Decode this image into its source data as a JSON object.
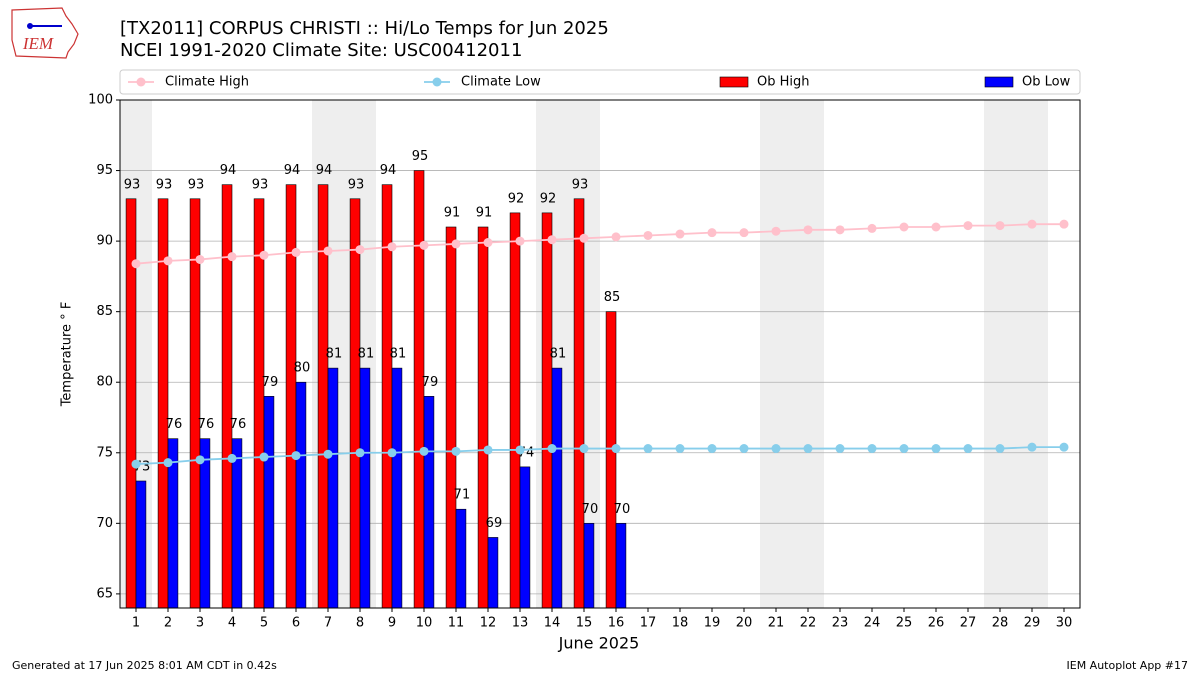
{
  "chart_data": {
    "type": "bar-line",
    "title": "[TX2011] CORPUS CHRISTI :: Hi/Lo Temps for Jun 2025",
    "subtitle": "NCEI 1991-2020 Climate Site: USC00412011",
    "x_label": "June 2025",
    "y_label": "Temperature ° F",
    "logo": "IEM",
    "footer_left": "Generated at 17 Jun 2025 8:01 AM CDT in 0.42s",
    "footer_right": "IEM Autoplot App #17",
    "x": [
      1,
      2,
      3,
      4,
      5,
      6,
      7,
      8,
      9,
      10,
      11,
      12,
      13,
      14,
      15,
      16,
      17,
      18,
      19,
      20,
      21,
      22,
      23,
      24,
      25,
      26,
      27,
      28,
      29,
      30
    ],
    "xlim": [
      0.5,
      30.5
    ],
    "ylim": [
      64,
      100
    ],
    "yticks": [
      65,
      70,
      75,
      80,
      85,
      90,
      95,
      100
    ],
    "grid": true,
    "shade_weekends": true,
    "legend": "top",
    "series": [
      {
        "name": "Climate High",
        "kind": "line",
        "color": "#ffc0cb",
        "values": [
          88.4,
          88.6,
          88.7,
          88.9,
          89.0,
          89.2,
          89.3,
          89.4,
          89.6,
          89.7,
          89.8,
          89.9,
          90.0,
          90.1,
          90.2,
          90.3,
          90.4,
          90.5,
          90.6,
          90.6,
          90.7,
          90.8,
          90.8,
          90.9,
          91.0,
          91.0,
          91.1,
          91.1,
          91.2,
          91.2
        ]
      },
      {
        "name": "Climate Low",
        "kind": "line",
        "color": "#87ceeb",
        "values": [
          74.2,
          74.3,
          74.5,
          74.6,
          74.7,
          74.8,
          74.9,
          75.0,
          75.0,
          75.1,
          75.1,
          75.2,
          75.2,
          75.3,
          75.3,
          75.3,
          75.3,
          75.3,
          75.3,
          75.3,
          75.3,
          75.3,
          75.3,
          75.3,
          75.3,
          75.3,
          75.3,
          75.3,
          75.4,
          75.4
        ]
      },
      {
        "name": "Ob High",
        "kind": "bar",
        "color": "#ff0000",
        "values": [
          93,
          93,
          93,
          94,
          93,
          94,
          94,
          93,
          94,
          95,
          91,
          91,
          92,
          92,
          93,
          85,
          null,
          null,
          null,
          null,
          null,
          null,
          null,
          null,
          null,
          null,
          null,
          null,
          null,
          null
        ]
      },
      {
        "name": "Ob Low",
        "kind": "bar",
        "color": "#0000ff",
        "values": [
          73,
          76,
          76,
          76,
          79,
          80,
          81,
          81,
          81,
          79,
          71,
          69,
          74,
          81,
          70,
          70,
          null,
          null,
          null,
          null,
          null,
          null,
          null,
          null,
          null,
          null,
          null,
          null,
          null,
          null
        ]
      }
    ]
  }
}
